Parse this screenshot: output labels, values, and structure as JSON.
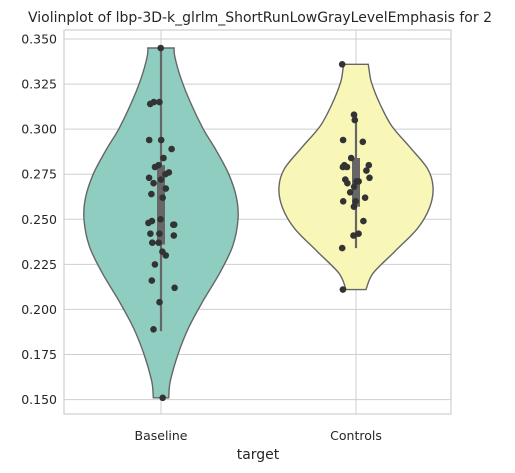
{
  "chart_data": {
    "type": "violin",
    "title": "Violinplot of lbp-3D-k_glrlm_ShortRunLowGrayLevelEmphasis for 2",
    "xlabel": "target",
    "ylabel": "",
    "categories": [
      "Baseline",
      "Controls"
    ],
    "ylim": [
      0.142,
      0.355
    ],
    "yticks": [
      0.15,
      0.175,
      0.2,
      0.225,
      0.25,
      0.275,
      0.3,
      0.325,
      0.35
    ],
    "ytick_labels": [
      "0.150",
      "0.175",
      "0.200",
      "0.225",
      "0.250",
      "0.275",
      "0.300",
      "0.325",
      "0.350"
    ],
    "grid": true,
    "colors": {
      "Baseline": "#8ecdc0",
      "Controls": "#f8f7b8",
      "outline": "#666666",
      "points": "#333333",
      "grid": "#cfcfcf"
    },
    "series": [
      {
        "name": "Baseline",
        "min": 0.151,
        "max": 0.345,
        "q1": 0.236,
        "median": 0.262,
        "q3": 0.28,
        "whisker_low": 0.188,
        "whisker_high": 0.345,
        "density_y": [
          0.151,
          0.16,
          0.175,
          0.19,
          0.205,
          0.22,
          0.235,
          0.25,
          0.262,
          0.275,
          0.288,
          0.3,
          0.315,
          0.328,
          0.34,
          0.345
        ],
        "density_w": [
          0.1,
          0.12,
          0.22,
          0.36,
          0.55,
          0.76,
          0.93,
          1.0,
          0.98,
          0.88,
          0.72,
          0.55,
          0.38,
          0.26,
          0.18,
          0.17
        ],
        "points": [
          0.345,
          0.151,
          0.314,
          0.315,
          0.315,
          0.294,
          0.294,
          0.289,
          0.284,
          0.28,
          0.279,
          0.276,
          0.275,
          0.273,
          0.272,
          0.27,
          0.267,
          0.264,
          0.262,
          0.25,
          0.249,
          0.248,
          0.247,
          0.247,
          0.242,
          0.242,
          0.241,
          0.237,
          0.237,
          0.232,
          0.23,
          0.225,
          0.216,
          0.212,
          0.204,
          0.189
        ]
      },
      {
        "name": "Controls",
        "min": 0.211,
        "max": 0.336,
        "q1": 0.257,
        "median": 0.272,
        "q3": 0.284,
        "whisker_low": 0.234,
        "whisker_high": 0.308,
        "density_y": [
          0.211,
          0.22,
          0.232,
          0.245,
          0.257,
          0.268,
          0.278,
          0.29,
          0.302,
          0.315,
          0.326,
          0.333,
          0.336
        ],
        "density_w": [
          0.13,
          0.22,
          0.5,
          0.8,
          0.96,
          1.0,
          0.93,
          0.7,
          0.46,
          0.3,
          0.2,
          0.17,
          0.16
        ],
        "points": [
          0.336,
          0.308,
          0.305,
          0.294,
          0.293,
          0.284,
          0.28,
          0.28,
          0.279,
          0.279,
          0.277,
          0.273,
          0.272,
          0.271,
          0.271,
          0.27,
          0.268,
          0.265,
          0.262,
          0.26,
          0.26,
          0.257,
          0.249,
          0.242,
          0.241,
          0.234,
          0.211
        ]
      }
    ]
  }
}
